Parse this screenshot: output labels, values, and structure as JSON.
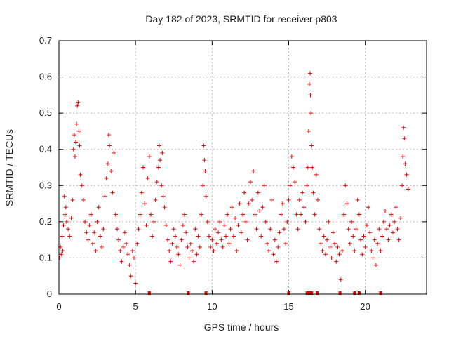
{
  "chart_data": {
    "type": "scatter",
    "title": "Day 182 of 2023, SRMTID for receiver p803",
    "xlabel": "GPS time / hours",
    "ylabel": "SRMTID / TECUs",
    "xlim": [
      0,
      24
    ],
    "ylim": [
      0,
      0.7
    ],
    "x_ticks": [
      0,
      5,
      10,
      15,
      20
    ],
    "x_tick_labels": [
      "0",
      "5",
      "10",
      "15",
      "20"
    ],
    "y_ticks": [
      0,
      0.1,
      0.2,
      0.3,
      0.4,
      0.5,
      0.6,
      0.7
    ],
    "y_tick_labels": [
      "0",
      "0.1",
      "0.2",
      "0.3",
      "0.4",
      "0.5",
      "0.6",
      "0.7"
    ],
    "grid": true,
    "marker": "+",
    "color": "#ee0000",
    "series": [
      {
        "name": "SRMTID",
        "points": [
          [
            0.05,
            0.1
          ],
          [
            0.1,
            0.13
          ],
          [
            0.15,
            0.11
          ],
          [
            0.2,
            0.16
          ],
          [
            0.25,
            0.12
          ],
          [
            0.3,
            0.19
          ],
          [
            0.35,
            0.27
          ],
          [
            0.4,
            0.22
          ],
          [
            0.45,
            0.24
          ],
          [
            0.5,
            0.2
          ],
          [
            0.6,
            0.18
          ],
          [
            0.7,
            0.16
          ],
          [
            0.8,
            0.21
          ],
          [
            0.9,
            0.26
          ],
          [
            0.95,
            0.4
          ],
          [
            1.0,
            0.44
          ],
          [
            1.05,
            0.38
          ],
          [
            1.1,
            0.42
          ],
          [
            1.15,
            0.47
          ],
          [
            1.2,
            0.52
          ],
          [
            1.25,
            0.53
          ],
          [
            1.3,
            0.45
          ],
          [
            1.35,
            0.41
          ],
          [
            1.4,
            0.33
          ],
          [
            1.5,
            0.3
          ],
          [
            1.6,
            0.26
          ],
          [
            1.7,
            0.2
          ],
          [
            1.8,
            0.17
          ],
          [
            1.9,
            0.15
          ],
          [
            2.0,
            0.19
          ],
          [
            2.1,
            0.22
          ],
          [
            2.2,
            0.14
          ],
          [
            2.3,
            0.17
          ],
          [
            2.4,
            0.12
          ],
          [
            2.5,
            0.2
          ],
          [
            2.6,
            0.24
          ],
          [
            2.7,
            0.16
          ],
          [
            2.8,
            0.13
          ],
          [
            2.9,
            0.18
          ],
          [
            3.0,
            0.27
          ],
          [
            3.1,
            0.32
          ],
          [
            3.2,
            0.36
          ],
          [
            3.25,
            0.44
          ],
          [
            3.3,
            0.41
          ],
          [
            3.4,
            0.34
          ],
          [
            3.5,
            0.28
          ],
          [
            3.6,
            0.39
          ],
          [
            3.7,
            0.22
          ],
          [
            3.8,
            0.18
          ],
          [
            3.9,
            0.15
          ],
          [
            4.0,
            0.12
          ],
          [
            4.1,
            0.09
          ],
          [
            4.2,
            0.13
          ],
          [
            4.3,
            0.17
          ],
          [
            4.4,
            0.14
          ],
          [
            4.5,
            0.11
          ],
          [
            4.6,
            0.08
          ],
          [
            4.7,
            0.05
          ],
          [
            4.8,
            0.12
          ],
          [
            4.9,
            0.1
          ],
          [
            5.0,
            0.03
          ],
          [
            5.1,
            0.14
          ],
          [
            5.2,
            0.18
          ],
          [
            5.3,
            0.22
          ],
          [
            5.4,
            0.28
          ],
          [
            5.5,
            0.35
          ],
          [
            5.6,
            0.25
          ],
          [
            5.7,
            0.19
          ],
          [
            5.8,
            0.32
          ],
          [
            5.9,
            0.38
          ],
          [
            6.0,
            0.22
          ],
          [
            6.1,
            0.16
          ],
          [
            6.2,
            0.2
          ],
          [
            6.3,
            0.26
          ],
          [
            6.4,
            0.31
          ],
          [
            6.5,
            0.35
          ],
          [
            6.55,
            0.41
          ],
          [
            6.6,
            0.37
          ],
          [
            6.7,
            0.3
          ],
          [
            6.75,
            0.39
          ],
          [
            6.8,
            0.27
          ],
          [
            6.9,
            0.24
          ],
          [
            7.0,
            0.19
          ],
          [
            7.1,
            0.15
          ],
          [
            7.2,
            0.12
          ],
          [
            7.3,
            0.09
          ],
          [
            7.4,
            0.14
          ],
          [
            7.5,
            0.18
          ],
          [
            7.6,
            0.16
          ],
          [
            7.7,
            0.13
          ],
          [
            7.8,
            0.11
          ],
          [
            7.9,
            0.08
          ],
          [
            8.0,
            0.15
          ],
          [
            8.1,
            0.19
          ],
          [
            8.2,
            0.22
          ],
          [
            8.3,
            0.17
          ],
          [
            8.4,
            0.13
          ],
          [
            8.5,
            0.1
          ],
          [
            8.6,
            0.14
          ],
          [
            8.7,
            0.12
          ],
          [
            8.8,
            0.09
          ],
          [
            8.9,
            0.18
          ],
          [
            9.0,
            0.11
          ],
          [
            9.1,
            0.16
          ],
          [
            9.2,
            0.13
          ],
          [
            9.3,
            0.22
          ],
          [
            9.4,
            0.3
          ],
          [
            9.45,
            0.41
          ],
          [
            9.5,
            0.37
          ],
          [
            9.55,
            0.34
          ],
          [
            9.6,
            0.27
          ],
          [
            9.7,
            0.2
          ],
          [
            9.8,
            0.16
          ],
          [
            9.9,
            0.13
          ],
          [
            10.0,
            0.15
          ],
          [
            10.1,
            0.12
          ],
          [
            10.2,
            0.18
          ],
          [
            10.3,
            0.14
          ],
          [
            10.4,
            0.17
          ],
          [
            10.5,
            0.2
          ],
          [
            10.6,
            0.15
          ],
          [
            10.7,
            0.13
          ],
          [
            10.8,
            0.19
          ],
          [
            10.9,
            0.16
          ],
          [
            11.0,
            0.22
          ],
          [
            11.1,
            0.14
          ],
          [
            11.2,
            0.18
          ],
          [
            11.3,
            0.24
          ],
          [
            11.4,
            0.16
          ],
          [
            11.5,
            0.21
          ],
          [
            11.6,
            0.12
          ],
          [
            11.7,
            0.19
          ],
          [
            11.8,
            0.25
          ],
          [
            11.9,
            0.17
          ],
          [
            12.0,
            0.22
          ],
          [
            12.1,
            0.28
          ],
          [
            12.2,
            0.2
          ],
          [
            12.3,
            0.15
          ],
          [
            12.4,
            0.25
          ],
          [
            12.5,
            0.31
          ],
          [
            12.6,
            0.26
          ],
          [
            12.7,
            0.34
          ],
          [
            12.8,
            0.22
          ],
          [
            12.9,
            0.18
          ],
          [
            13.0,
            0.28
          ],
          [
            13.1,
            0.23
          ],
          [
            13.2,
            0.16
          ],
          [
            13.3,
            0.24
          ],
          [
            13.4,
            0.3
          ],
          [
            13.5,
            0.2
          ],
          [
            13.6,
            0.14
          ],
          [
            13.7,
            0.12
          ],
          [
            13.8,
            0.18
          ],
          [
            13.9,
            0.26
          ],
          [
            14.0,
            0.11
          ],
          [
            14.1,
            0.15
          ],
          [
            14.2,
            0.09
          ],
          [
            14.3,
            0.13
          ],
          [
            14.4,
            0.17
          ],
          [
            14.5,
            0.22
          ],
          [
            14.6,
            0.25
          ],
          [
            14.7,
            0.18
          ],
          [
            14.8,
            0.14
          ],
          [
            14.9,
            0.2
          ],
          [
            15.0,
            0.26
          ],
          [
            15.1,
            0.3
          ],
          [
            15.2,
            0.38
          ],
          [
            15.3,
            0.35
          ],
          [
            15.4,
            0.31
          ],
          [
            15.5,
            0.22
          ],
          [
            15.6,
            0.18
          ],
          [
            15.7,
            0.26
          ],
          [
            15.8,
            0.22
          ],
          [
            15.9,
            0.28
          ],
          [
            16.0,
            0.24
          ],
          [
            16.1,
            0.2
          ],
          [
            16.2,
            0.3
          ],
          [
            16.25,
            0.35
          ],
          [
            16.3,
            0.45
          ],
          [
            16.35,
            0.58
          ],
          [
            16.4,
            0.61
          ],
          [
            16.42,
            0.55
          ],
          [
            16.45,
            0.5
          ],
          [
            16.5,
            0.41
          ],
          [
            16.55,
            0.35
          ],
          [
            16.6,
            0.28
          ],
          [
            16.7,
            0.22
          ],
          [
            16.8,
            0.33
          ],
          [
            16.9,
            0.26
          ],
          [
            17.0,
            0.18
          ],
          [
            17.1,
            0.14
          ],
          [
            17.2,
            0.12
          ],
          [
            17.3,
            0.16
          ],
          [
            17.4,
            0.11
          ],
          [
            17.5,
            0.15
          ],
          [
            17.6,
            0.2
          ],
          [
            17.7,
            0.13
          ],
          [
            17.8,
            0.1
          ],
          [
            17.9,
            0.17
          ],
          [
            18.0,
            0.14
          ],
          [
            18.1,
            0.09
          ],
          [
            18.2,
            0.13
          ],
          [
            18.3,
            0.11
          ],
          [
            18.4,
            0.04
          ],
          [
            18.5,
            0.12
          ],
          [
            18.6,
            0.22
          ],
          [
            18.7,
            0.3
          ],
          [
            18.8,
            0.25
          ],
          [
            18.9,
            0.18
          ],
          [
            19.0,
            0.14
          ],
          [
            19.1,
            0.2
          ],
          [
            19.2,
            0.16
          ],
          [
            19.3,
            0.12
          ],
          [
            19.4,
            0.18
          ],
          [
            19.5,
            0.26
          ],
          [
            19.6,
            0.22
          ],
          [
            19.7,
            0.15
          ],
          [
            19.8,
            0.11
          ],
          [
            19.9,
            0.16
          ],
          [
            20.0,
            0.13
          ],
          [
            20.1,
            0.19
          ],
          [
            20.2,
            0.24
          ],
          [
            20.3,
            0.17
          ],
          [
            20.4,
            0.12
          ],
          [
            20.5,
            0.1
          ],
          [
            20.6,
            0.15
          ],
          [
            20.7,
            0.08
          ],
          [
            20.8,
            0.14
          ],
          [
            20.9,
            0.18
          ],
          [
            21.0,
            0.12
          ],
          [
            21.1,
            0.16
          ],
          [
            21.2,
            0.2
          ],
          [
            21.3,
            0.23
          ],
          [
            21.4,
            0.18
          ],
          [
            21.5,
            0.15
          ],
          [
            21.6,
            0.19
          ],
          [
            21.7,
            0.22
          ],
          [
            21.8,
            0.17
          ],
          [
            21.9,
            0.2
          ],
          [
            22.0,
            0.24
          ],
          [
            22.1,
            0.18
          ],
          [
            22.2,
            0.15
          ],
          [
            22.3,
            0.21
          ],
          [
            22.4,
            0.3
          ],
          [
            22.45,
            0.38
          ],
          [
            22.5,
            0.46
          ],
          [
            22.55,
            0.43
          ],
          [
            22.6,
            0.36
          ],
          [
            22.7,
            0.33
          ],
          [
            22.8,
            0.29
          ]
        ]
      }
    ],
    "outage_markers_x": [
      5.9,
      8.45,
      9.6,
      15.0,
      16.2,
      16.35,
      16.5,
      16.85,
      18.35,
      19.3,
      19.6,
      21.0
    ]
  }
}
